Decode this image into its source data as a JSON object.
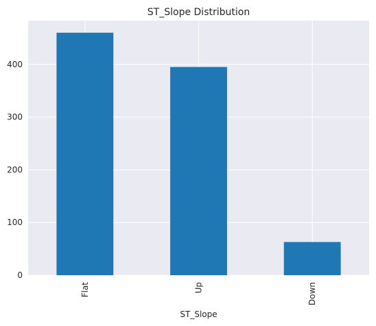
{
  "chart_data": {
    "type": "bar",
    "title": "ST_Slope Distribution",
    "xlabel": "ST_Slope",
    "ylabel": "",
    "categories": [
      "Flat",
      "Up",
      "Down"
    ],
    "values": [
      460,
      395,
      63
    ],
    "ylim": [
      0,
      483
    ],
    "yticks": [
      0,
      100,
      200,
      300,
      400
    ],
    "grid": true,
    "legend": "none",
    "colors": {
      "bar": "#1f77b4",
      "plot_background": "#eaeaf2",
      "grid": "#ffffff",
      "text": "#262626"
    }
  }
}
